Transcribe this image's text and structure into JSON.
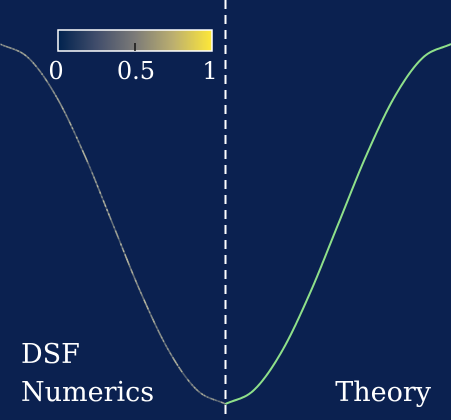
{
  "chart_data": {
    "type": "line",
    "panels": [
      {
        "name": "DSF Numerics",
        "label_lines": [
          "DSF",
          "Numerics"
        ],
        "style": "speckled_heatmap_line",
        "color_hint": "#c9c6a8",
        "x": [
          -3.1416,
          -2.7489,
          -2.3562,
          -1.9635,
          -1.5708,
          -1.1781,
          -0.7854,
          -0.3927,
          0.0
        ],
        "y": [
          2.0,
          1.8478,
          1.4142,
          0.7654,
          0.0,
          -0.7654,
          -1.4142,
          -1.8478,
          -2.0
        ]
      },
      {
        "name": "Theory",
        "label_lines": [
          "Theory"
        ],
        "style": "solid",
        "color_hint": "#8fe08a",
        "x": [
          0.0,
          0.3927,
          0.7854,
          1.1781,
          1.5708,
          1.9635,
          2.3562,
          2.7489,
          3.1416
        ],
        "y": [
          -2.0,
          -1.8478,
          -1.4142,
          -0.7654,
          0.0,
          0.7654,
          1.4142,
          1.8478,
          2.0
        ]
      }
    ],
    "divider": {
      "x": 0.0,
      "style": "dashed",
      "color": "#ffffff"
    },
    "xlim": [
      -3.1416,
      3.1416
    ],
    "ylim": [
      -2.0,
      2.0
    ],
    "background": "#0b2150",
    "grid": false,
    "colorbar": {
      "min": 0,
      "max": 1,
      "ticks": [
        "0",
        "0.5",
        "1"
      ],
      "colormap": "cividis",
      "stops": [
        "#00224e",
        "#414d6b",
        "#7c7b78",
        "#bcaf6f",
        "#fee838"
      ],
      "placement": "top-left"
    }
  }
}
